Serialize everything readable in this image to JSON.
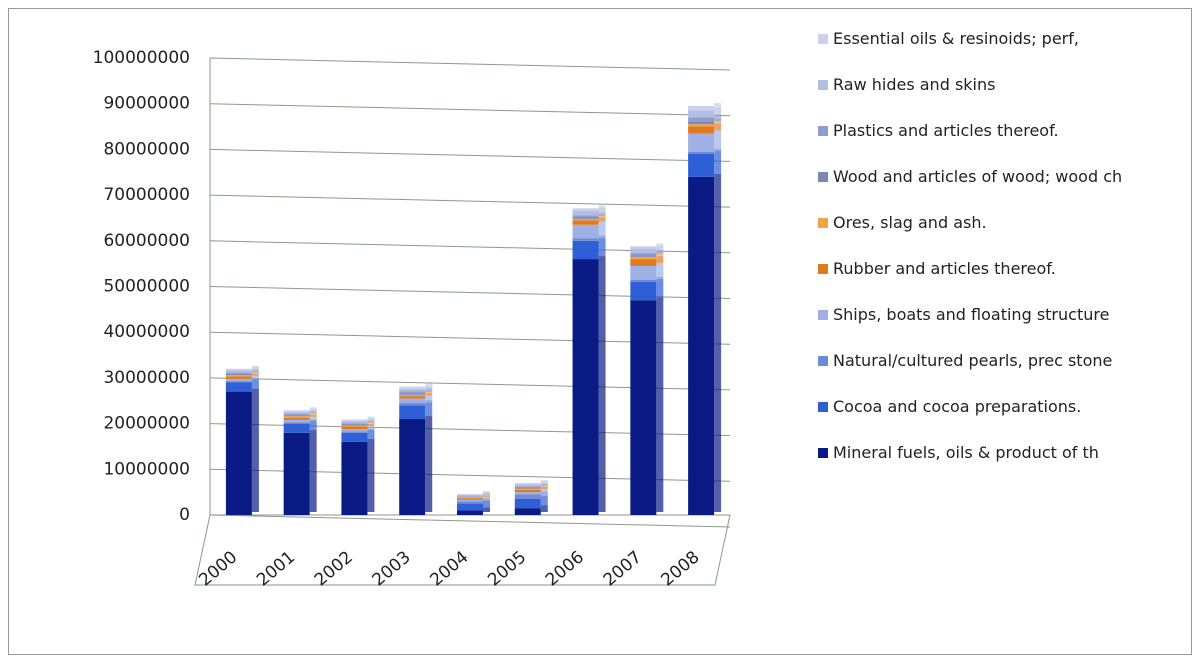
{
  "chart_data": {
    "type": "bar",
    "stacked": true,
    "grid": true,
    "categories": [
      "2000",
      "2001",
      "2002",
      "2003",
      "2004",
      "2005",
      "2006",
      "2007",
      "2008"
    ],
    "ylim": [
      0,
      100000000
    ],
    "yticks": [
      0,
      10000000,
      20000000,
      30000000,
      40000000,
      50000000,
      60000000,
      70000000,
      80000000,
      90000000,
      100000000
    ],
    "series": [
      {
        "name": "Mineral fuels, oils & product of th",
        "color": "#0b1b86",
        "values": [
          27000000,
          18000000,
          16000000,
          21000000,
          1000000,
          1500000,
          56000000,
          47000000,
          74000000
        ]
      },
      {
        "name": "Cocoa and cocoa preparations.",
        "color": "#2f5fd6",
        "values": [
          2000000,
          2000000,
          2000000,
          3000000,
          1500000,
          2000000,
          4000000,
          4000000,
          5000000
        ]
      },
      {
        "name": "Natural/cultured pearls, prec stone",
        "color": "#6f8bd6",
        "values": [
          300000,
          300000,
          300000,
          500000,
          500000,
          1000000,
          500000,
          500000,
          500000
        ]
      },
      {
        "name": "Ships, boats and floating structure",
        "color": "#9fb0e4",
        "values": [
          500000,
          500000,
          500000,
          1000000,
          300000,
          500000,
          3000000,
          3000000,
          4000000
        ]
      },
      {
        "name": "Rubber and articles thereof.",
        "color": "#e07a1f",
        "values": [
          500000,
          500000,
          500000,
          500000,
          300000,
          500000,
          1000000,
          1500000,
          1500000
        ]
      },
      {
        "name": "Ores, slag and ash.",
        "color": "#f2a344",
        "values": [
          300000,
          300000,
          300000,
          300000,
          200000,
          300000,
          300000,
          500000,
          500000
        ]
      },
      {
        "name": "Wood and articles of wood; wood ch",
        "color": "#7b88b3",
        "values": [
          300000,
          200000,
          200000,
          300000,
          100000,
          200000,
          300000,
          300000,
          500000
        ]
      },
      {
        "name": "Plastics and articles thereof.",
        "color": "#8e9dd0",
        "values": [
          300000,
          300000,
          300000,
          500000,
          200000,
          300000,
          500000,
          500000,
          1000000
        ]
      },
      {
        "name": "Raw hides and skins",
        "color": "#b2bee2",
        "values": [
          500000,
          500000,
          500000,
          500000,
          300000,
          400000,
          1000000,
          1000000,
          1500000
        ]
      },
      {
        "name": "Essential oils & resinoids; perf,",
        "color": "#c9d1ec",
        "values": [
          300000,
          300000,
          300000,
          500000,
          200000,
          300000,
          500000,
          500000,
          1000000
        ]
      }
    ]
  }
}
